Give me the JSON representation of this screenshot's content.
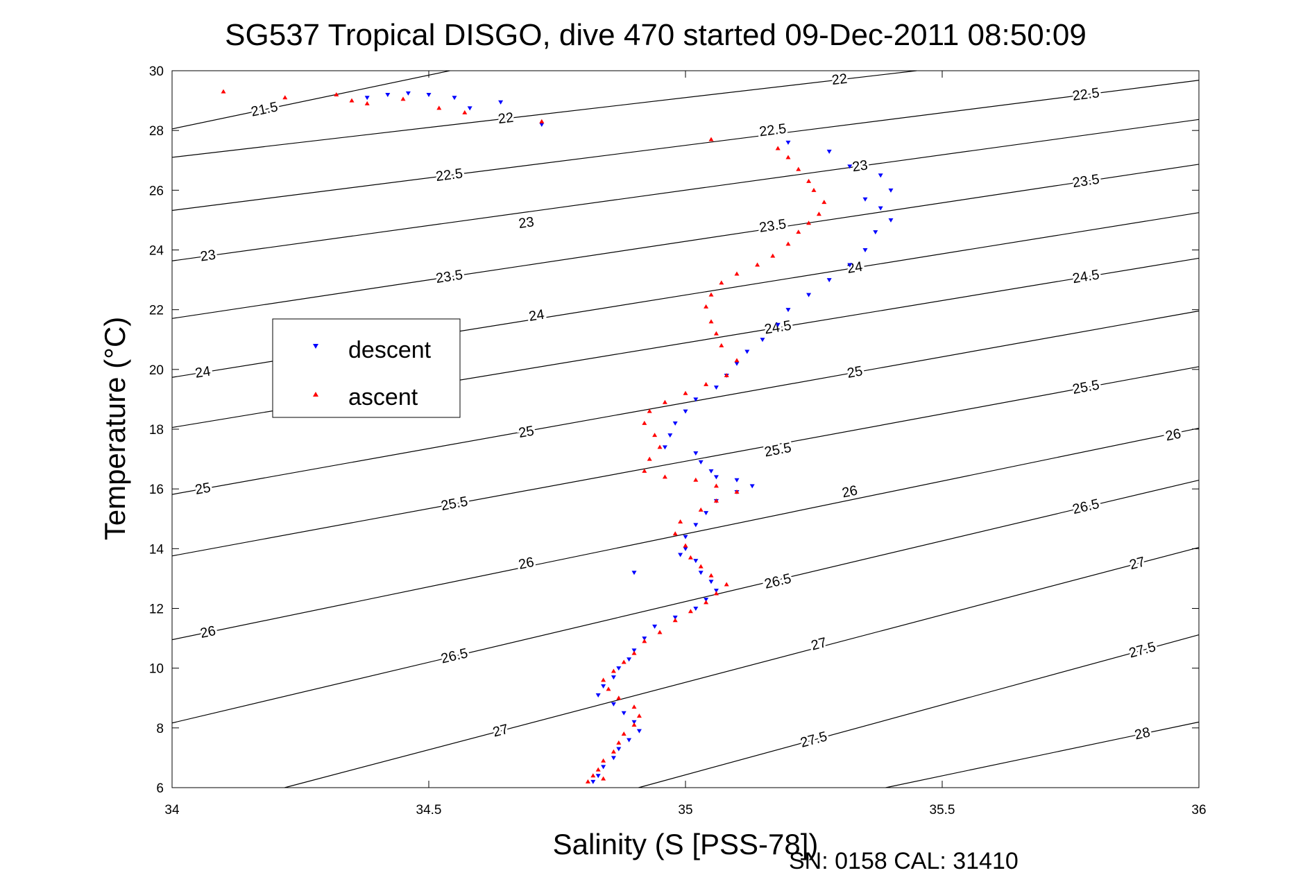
{
  "chart_data": {
    "type": "scatter",
    "title": "SG537 Tropical DISGO, dive 470 started 09-Dec-2011 08:50:09",
    "xlabel": "Salinity (S [PSS-78])",
    "ylabel": "Temperature (°C)",
    "xlim": [
      34,
      36
    ],
    "ylim": [
      6,
      30
    ],
    "xticks": [
      "34",
      "34.5",
      "35",
      "35.5",
      "36"
    ],
    "yticks": [
      "6",
      "8",
      "10",
      "12",
      "14",
      "16",
      "18",
      "20",
      "22",
      "24",
      "26",
      "28",
      "30"
    ],
    "legend": {
      "position": "center-left"
    },
    "footer": "SN: 0158  CAL: 31410",
    "grid": false,
    "series": [
      {
        "name": "descent",
        "color": "#0000ff",
        "marker": "triangle-down",
        "points": [
          [
            34.38,
            29.1
          ],
          [
            34.42,
            29.2
          ],
          [
            34.46,
            29.25
          ],
          [
            34.5,
            29.2
          ],
          [
            34.55,
            29.1
          ],
          [
            34.58,
            28.75
          ],
          [
            34.64,
            28.95
          ],
          [
            34.72,
            28.2
          ],
          [
            35.2,
            27.6
          ],
          [
            35.28,
            27.3
          ],
          [
            35.32,
            26.8
          ],
          [
            35.38,
            26.5
          ],
          [
            35.4,
            26.0
          ],
          [
            35.35,
            25.7
          ],
          [
            35.38,
            25.4
          ],
          [
            35.4,
            25.0
          ],
          [
            35.37,
            24.6
          ],
          [
            35.35,
            24.0
          ],
          [
            35.32,
            23.5
          ],
          [
            35.28,
            23.0
          ],
          [
            35.24,
            22.5
          ],
          [
            35.2,
            22.0
          ],
          [
            35.18,
            21.5
          ],
          [
            35.15,
            21.0
          ],
          [
            35.12,
            20.6
          ],
          [
            35.1,
            20.2
          ],
          [
            35.08,
            19.8
          ],
          [
            35.06,
            19.4
          ],
          [
            35.02,
            19.0
          ],
          [
            35.0,
            18.6
          ],
          [
            34.98,
            18.2
          ],
          [
            34.97,
            17.8
          ],
          [
            34.96,
            17.4
          ],
          [
            35.02,
            17.2
          ],
          [
            35.03,
            16.9
          ],
          [
            35.05,
            16.6
          ],
          [
            35.06,
            16.4
          ],
          [
            35.1,
            16.3
          ],
          [
            35.13,
            16.1
          ],
          [
            35.1,
            15.9
          ],
          [
            35.06,
            15.6
          ],
          [
            35.04,
            15.2
          ],
          [
            35.02,
            14.8
          ],
          [
            35.0,
            14.4
          ],
          [
            35.0,
            14.0
          ],
          [
            34.99,
            13.8
          ],
          [
            35.02,
            13.6
          ],
          [
            35.03,
            13.2
          ],
          [
            35.05,
            12.9
          ],
          [
            35.06,
            12.6
          ],
          [
            35.04,
            12.3
          ],
          [
            35.02,
            12.0
          ],
          [
            34.98,
            11.7
          ],
          [
            34.94,
            11.4
          ],
          [
            34.92,
            11.0
          ],
          [
            34.9,
            10.6
          ],
          [
            34.89,
            10.3
          ],
          [
            34.87,
            10.0
          ],
          [
            34.86,
            9.7
          ],
          [
            34.84,
            9.4
          ],
          [
            34.83,
            9.1
          ],
          [
            34.86,
            8.8
          ],
          [
            34.88,
            8.5
          ],
          [
            34.9,
            8.2
          ],
          [
            34.91,
            7.9
          ],
          [
            34.89,
            7.6
          ],
          [
            34.87,
            7.3
          ],
          [
            34.86,
            7.0
          ],
          [
            34.84,
            6.7
          ],
          [
            34.83,
            6.4
          ],
          [
            34.82,
            6.2
          ],
          [
            34.9,
            13.2
          ]
        ]
      },
      {
        "name": "ascent",
        "color": "#ff0000",
        "marker": "triangle-up",
        "points": [
          [
            34.1,
            29.3
          ],
          [
            34.22,
            29.1
          ],
          [
            34.32,
            29.2
          ],
          [
            34.35,
            29.0
          ],
          [
            34.38,
            28.9
          ],
          [
            34.45,
            29.05
          ],
          [
            34.52,
            28.75
          ],
          [
            34.57,
            28.6
          ],
          [
            34.72,
            28.3
          ],
          [
            35.05,
            27.7
          ],
          [
            35.18,
            27.4
          ],
          [
            35.2,
            27.1
          ],
          [
            35.22,
            26.7
          ],
          [
            35.24,
            26.3
          ],
          [
            35.25,
            26.0
          ],
          [
            35.27,
            25.6
          ],
          [
            35.26,
            25.2
          ],
          [
            35.24,
            24.9
          ],
          [
            35.22,
            24.6
          ],
          [
            35.2,
            24.2
          ],
          [
            35.17,
            23.8
          ],
          [
            35.14,
            23.5
          ],
          [
            35.1,
            23.2
          ],
          [
            35.07,
            22.9
          ],
          [
            35.05,
            22.5
          ],
          [
            35.04,
            22.1
          ],
          [
            35.05,
            21.6
          ],
          [
            35.06,
            21.2
          ],
          [
            35.07,
            20.8
          ],
          [
            35.1,
            20.3
          ],
          [
            35.08,
            19.8
          ],
          [
            35.04,
            19.5
          ],
          [
            35.0,
            19.2
          ],
          [
            34.96,
            18.9
          ],
          [
            34.93,
            18.6
          ],
          [
            34.92,
            18.2
          ],
          [
            34.94,
            17.8
          ],
          [
            34.95,
            17.4
          ],
          [
            34.93,
            17.0
          ],
          [
            34.92,
            16.6
          ],
          [
            34.96,
            16.4
          ],
          [
            35.02,
            16.3
          ],
          [
            35.06,
            16.1
          ],
          [
            35.1,
            15.9
          ],
          [
            35.06,
            15.6
          ],
          [
            35.03,
            15.3
          ],
          [
            34.99,
            14.9
          ],
          [
            34.98,
            14.5
          ],
          [
            35.0,
            14.1
          ],
          [
            35.01,
            13.7
          ],
          [
            35.03,
            13.4
          ],
          [
            35.05,
            13.1
          ],
          [
            35.08,
            12.8
          ],
          [
            35.06,
            12.5
          ],
          [
            35.04,
            12.2
          ],
          [
            35.01,
            11.9
          ],
          [
            34.98,
            11.6
          ],
          [
            34.95,
            11.2
          ],
          [
            34.92,
            10.9
          ],
          [
            34.9,
            10.5
          ],
          [
            34.88,
            10.2
          ],
          [
            34.86,
            9.9
          ],
          [
            34.84,
            9.6
          ],
          [
            34.85,
            9.3
          ],
          [
            34.87,
            9.0
          ],
          [
            34.9,
            8.7
          ],
          [
            34.91,
            8.4
          ],
          [
            34.9,
            8.1
          ],
          [
            34.88,
            7.8
          ],
          [
            34.87,
            7.5
          ],
          [
            34.86,
            7.2
          ],
          [
            34.84,
            6.9
          ],
          [
            34.83,
            6.6
          ],
          [
            34.82,
            6.4
          ],
          [
            34.81,
            6.2
          ],
          [
            34.84,
            6.3
          ]
        ]
      }
    ],
    "contours": [
      {
        "value": 21.5,
        "labels": [
          {
            "x": 34.18,
            "y": 28.7
          }
        ]
      },
      {
        "value": 22,
        "labels": [
          {
            "x": 34.65,
            "y": 28.4
          },
          {
            "x": 35.3,
            "y": 29.7
          }
        ]
      },
      {
        "value": 22.5,
        "labels": [
          {
            "x": 34.54,
            "y": 26.5
          },
          {
            "x": 35.17,
            "y": 28.0
          },
          {
            "x": 35.78,
            "y": 29.2
          }
        ]
      },
      {
        "value": 23,
        "labels": [
          {
            "x": 34.07,
            "y": 23.8
          },
          {
            "x": 34.69,
            "y": 24.9
          },
          {
            "x": 35.34,
            "y": 26.8
          }
        ]
      },
      {
        "value": 23.5,
        "labels": [
          {
            "x": 34.54,
            "y": 23.1
          },
          {
            "x": 35.17,
            "y": 24.8
          },
          {
            "x": 35.78,
            "y": 26.3
          }
        ]
      },
      {
        "value": 24,
        "labels": [
          {
            "x": 34.06,
            "y": 19.9
          },
          {
            "x": 34.71,
            "y": 21.8
          },
          {
            "x": 35.33,
            "y": 23.4
          }
        ]
      },
      {
        "value": 24.5,
        "labels": [
          {
            "x": 35.18,
            "y": 21.4
          },
          {
            "x": 35.78,
            "y": 23.1
          }
        ]
      },
      {
        "value": 25,
        "labels": [
          {
            "x": 34.06,
            "y": 16.0
          },
          {
            "x": 34.69,
            "y": 17.9
          },
          {
            "x": 35.33,
            "y": 19.9
          }
        ]
      },
      {
        "value": 25.5,
        "labels": [
          {
            "x": 34.55,
            "y": 15.5
          },
          {
            "x": 35.18,
            "y": 17.3
          },
          {
            "x": 35.78,
            "y": 19.4
          }
        ]
      },
      {
        "value": 26,
        "labels": [
          {
            "x": 34.07,
            "y": 11.2
          },
          {
            "x": 34.69,
            "y": 13.5
          },
          {
            "x": 35.32,
            "y": 15.9
          },
          {
            "x": 35.95,
            "y": 17.8
          }
        ]
      },
      {
        "value": 26.5,
        "labels": [
          {
            "x": 34.55,
            "y": 10.4
          },
          {
            "x": 35.18,
            "y": 12.9
          },
          {
            "x": 35.78,
            "y": 15.4
          }
        ]
      },
      {
        "value": 27,
        "labels": [
          {
            "x": 34.64,
            "y": 7.9
          },
          {
            "x": 35.26,
            "y": 10.8
          },
          {
            "x": 35.88,
            "y": 13.5
          }
        ]
      },
      {
        "value": 27.5,
        "labels": [
          {
            "x": 35.25,
            "y": 7.6
          },
          {
            "x": 35.89,
            "y": 10.6
          }
        ]
      },
      {
        "value": 28,
        "labels": [
          {
            "x": 35.89,
            "y": 7.8
          }
        ]
      }
    ]
  }
}
